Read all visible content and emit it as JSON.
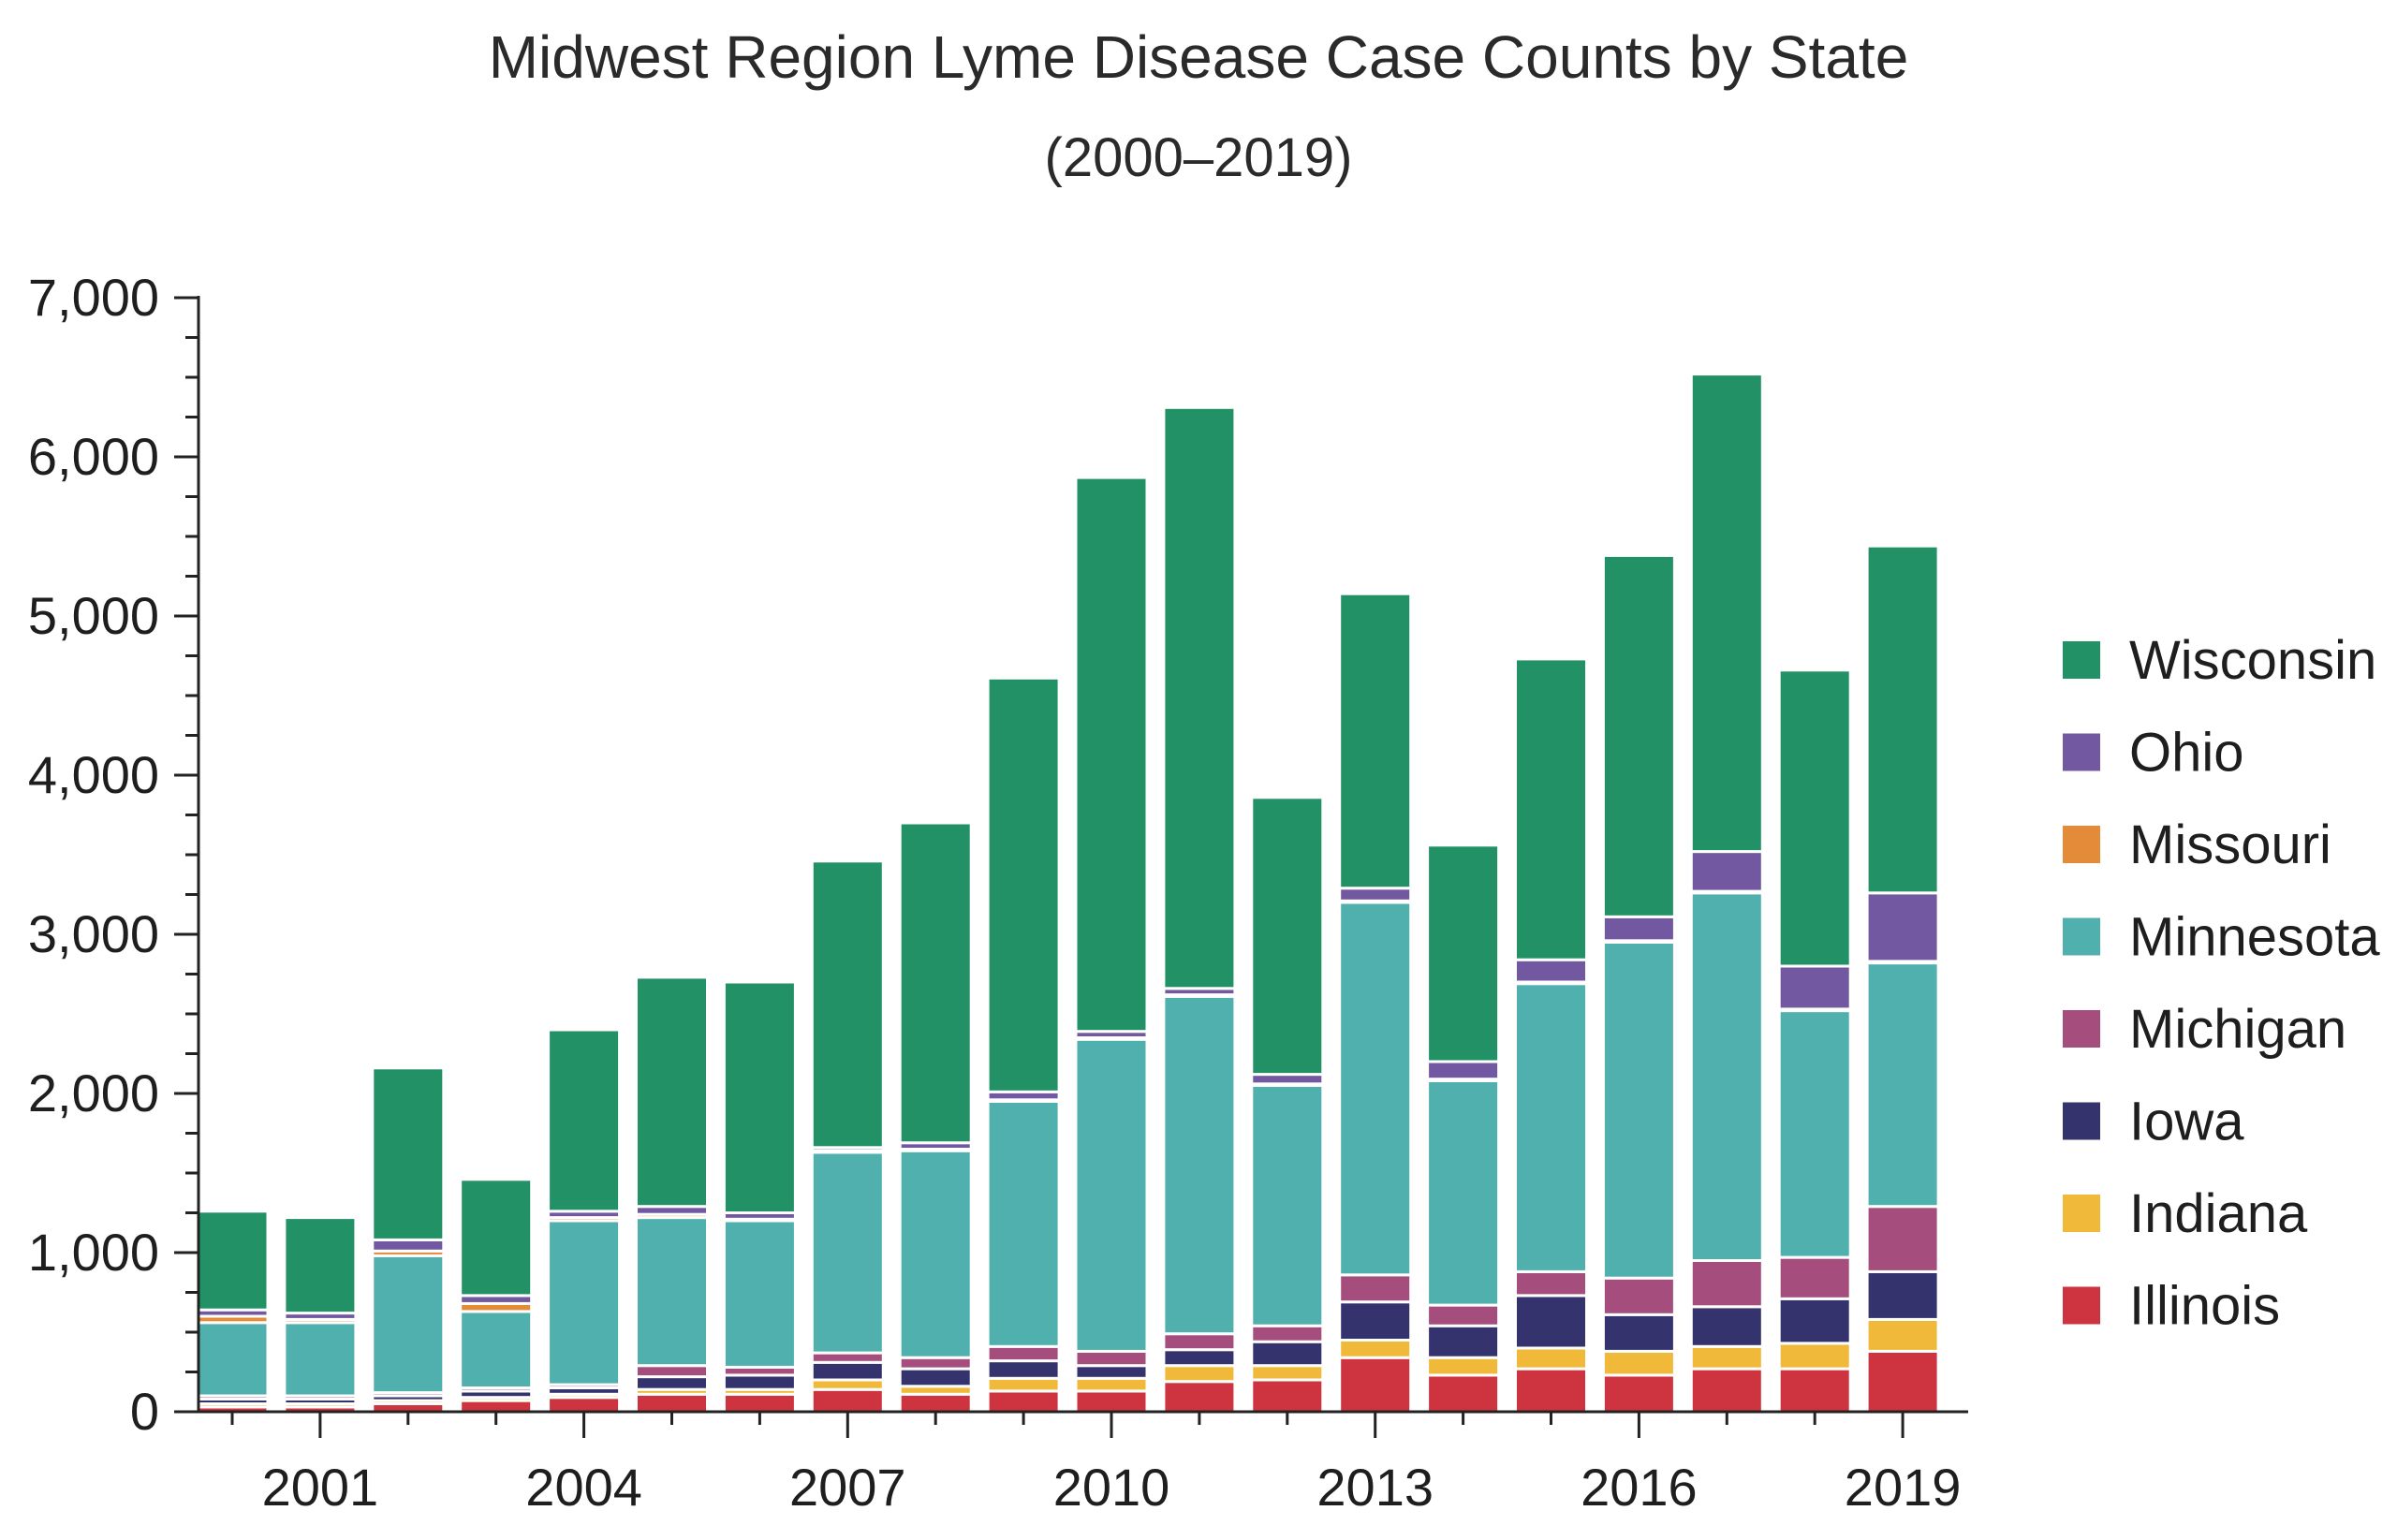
{
  "chart_data": {
    "type": "bar",
    "stacked": true,
    "title": "Midwest Region Lyme Disease Case Counts by State",
    "subtitle": "(2000–2019)",
    "xlabel": "",
    "ylabel": "",
    "ylim": [
      0,
      7000
    ],
    "y_ticks": [
      0,
      1000,
      2000,
      3000,
      4000,
      5000,
      6000,
      7000
    ],
    "y_tick_labels": [
      "0",
      "1,000",
      "2,000",
      "3,000",
      "4,000",
      "5,000",
      "6,000",
      "7,000"
    ],
    "x": [
      2000,
      2001,
      2002,
      2003,
      2004,
      2005,
      2006,
      2007,
      2008,
      2009,
      2010,
      2011,
      2012,
      2013,
      2014,
      2015,
      2016,
      2017,
      2018,
      2019
    ],
    "x_tick_labels": [
      "2001",
      "2004",
      "2007",
      "2010",
      "2013",
      "2016",
      "2019"
    ],
    "x_tick_years": [
      2001,
      2004,
      2007,
      2010,
      2013,
      2016,
      2019
    ],
    "grid": false,
    "legend_position": "right",
    "series": [
      {
        "name": "Illinois",
        "color": "#cd3440",
        "values": [
          30,
          30,
          50,
          70,
          90,
          110,
          110,
          140,
          110,
          130,
          130,
          190,
          200,
          340,
          230,
          270,
          230,
          270,
          270,
          380
        ]
      },
      {
        "name": "Indiana",
        "color": "#f0b93a",
        "values": [
          20,
          20,
          20,
          20,
          20,
          30,
          30,
          60,
          50,
          80,
          80,
          100,
          90,
          110,
          110,
          130,
          150,
          140,
          160,
          200
        ]
      },
      {
        "name": "Iowa",
        "color": "#35336e",
        "values": [
          30,
          30,
          30,
          40,
          40,
          80,
          90,
          110,
          110,
          110,
          80,
          100,
          150,
          240,
          200,
          330,
          230,
          250,
          280,
          300
        ]
      },
      {
        "name": "Michigan",
        "color": "#a54d7d",
        "values": [
          20,
          20,
          20,
          20,
          20,
          70,
          50,
          60,
          70,
          90,
          90,
          100,
          100,
          170,
          130,
          150,
          230,
          290,
          260,
          410
        ]
      },
      {
        "name": "Minnesota",
        "color": "#4fb0ae",
        "values": [
          460,
          460,
          860,
          480,
          1030,
          930,
          920,
          1260,
          1300,
          1540,
          1960,
          2120,
          1510,
          2340,
          1410,
          1810,
          2110,
          2310,
          1550,
          1530
        ]
      },
      {
        "name": "Missouri",
        "color": "#e48b3a",
        "values": [
          40,
          20,
          30,
          50,
          20,
          20,
          10,
          10,
          10,
          10,
          10,
          10,
          10,
          10,
          10,
          10,
          10,
          10,
          10,
          10
        ]
      },
      {
        "name": "Ohio",
        "color": "#7158a1",
        "values": [
          40,
          40,
          70,
          50,
          40,
          50,
          40,
          20,
          40,
          50,
          40,
          40,
          60,
          80,
          110,
          140,
          150,
          250,
          270,
          430
        ]
      },
      {
        "name": "Wisconsin",
        "color": "#229266",
        "values": [
          620,
          600,
          1080,
          730,
          1140,
          1440,
          1450,
          1800,
          2010,
          2600,
          3480,
          3650,
          1740,
          1850,
          1360,
          1890,
          2270,
          3000,
          1860,
          2180
        ]
      }
    ]
  }
}
